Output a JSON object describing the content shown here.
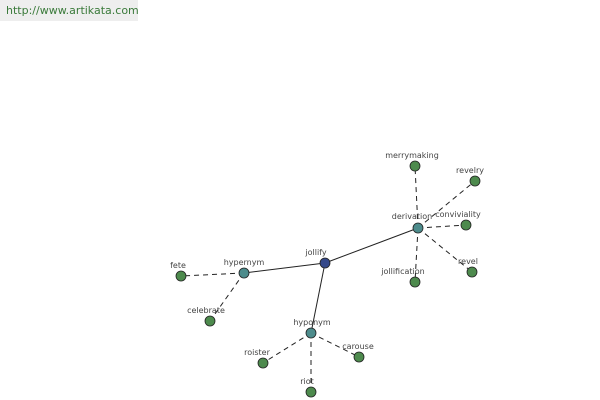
{
  "header": {
    "url": "http://www.artikata.com"
  },
  "nodes": [
    {
      "label": "jollify"
    },
    {
      "label": "hypernym"
    },
    {
      "label": "hyponym"
    },
    {
      "label": "derivation"
    },
    {
      "label": "fete"
    },
    {
      "label": "celebrate"
    },
    {
      "label": "roister"
    },
    {
      "label": "riot"
    },
    {
      "label": "carouse"
    },
    {
      "label": "merrymaking"
    },
    {
      "label": "revelry"
    },
    {
      "label": "conviviality"
    },
    {
      "label": "jollification"
    },
    {
      "label": "revel"
    }
  ]
}
